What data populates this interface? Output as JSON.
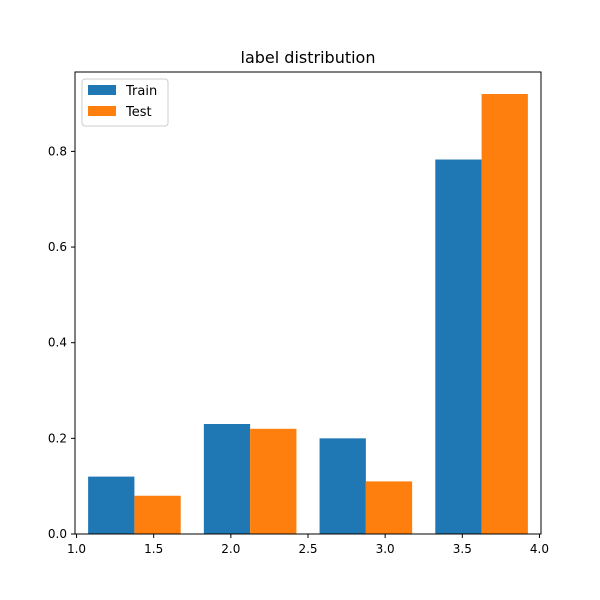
{
  "chart_data": {
    "type": "bar",
    "title": "label distribution",
    "xlabel": "",
    "ylabel": "",
    "x_tick_labels": [
      "1.0",
      "1.5",
      "2.0",
      "2.5",
      "3.0",
      "3.5",
      "4.0"
    ],
    "y_tick_labels": [
      "0.0",
      "0.2",
      "0.4",
      "0.6",
      "0.8"
    ],
    "xlim": [
      0.99,
      4.01
    ],
    "ylim": [
      0,
      0.966
    ],
    "bin_edges": [
      1.0,
      1.75,
      2.5,
      3.25,
      4.0
    ],
    "legend_position": "top-left",
    "grid": false,
    "series": [
      {
        "name": "Train",
        "color": "#1f77b4",
        "values": [
          0.12,
          0.23,
          0.2,
          0.783
        ]
      },
      {
        "name": "Test",
        "color": "#ff7f0e",
        "values": [
          0.08,
          0.22,
          0.11,
          0.92
        ]
      }
    ]
  }
}
